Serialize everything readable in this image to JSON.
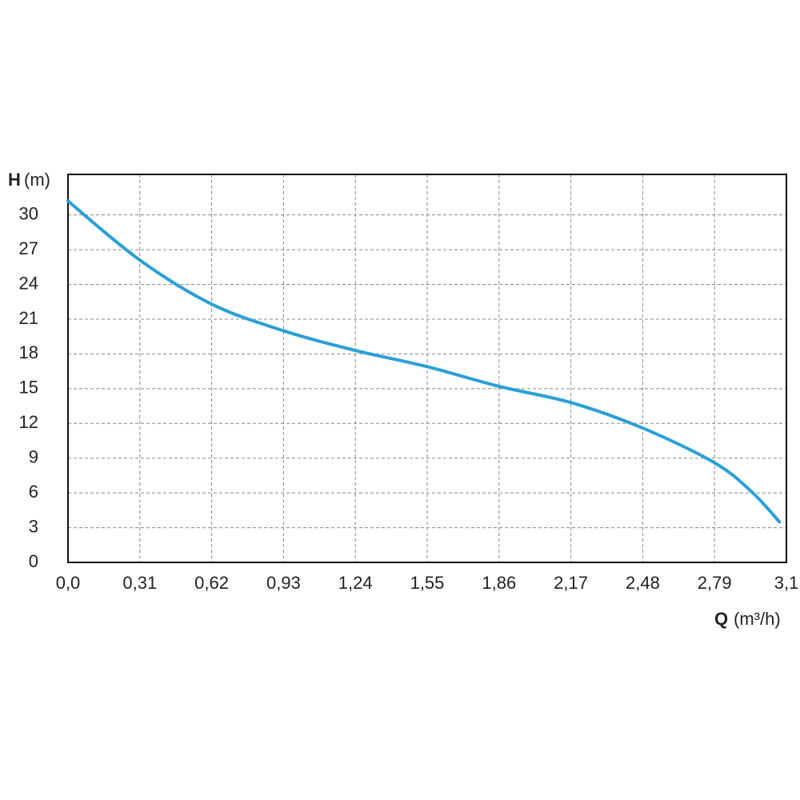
{
  "chart_data": {
    "type": "line",
    "y_label": "H",
    "y_unit": "(m)",
    "x_label": "Q",
    "x_unit": "(m³/h)",
    "xlim": [
      0,
      3.1
    ],
    "ylim": [
      0,
      33.5
    ],
    "xticks": [
      {
        "value": 0,
        "label": "0,0"
      },
      {
        "value": 0.31,
        "label": "0,31"
      },
      {
        "value": 0.62,
        "label": "0,62"
      },
      {
        "value": 0.93,
        "label": "0,93"
      },
      {
        "value": 1.24,
        "label": "1,24"
      },
      {
        "value": 1.55,
        "label": "1,55"
      },
      {
        "value": 1.86,
        "label": "1,86"
      },
      {
        "value": 2.17,
        "label": "2,17"
      },
      {
        "value": 2.48,
        "label": "2,48"
      },
      {
        "value": 2.79,
        "label": "2,79"
      },
      {
        "value": 3.1,
        "label": "3,1"
      }
    ],
    "yticks": [
      0,
      3,
      6,
      9,
      12,
      15,
      18,
      21,
      24,
      27,
      30
    ],
    "grid": true,
    "series": [
      {
        "color": "#2b9fd5",
        "x": [
          0,
          0.31,
          0.62,
          0.93,
          1.24,
          1.55,
          1.86,
          2.17,
          2.48,
          2.79,
          2.95,
          3.07
        ],
        "values": [
          31.2,
          26.1,
          22.3,
          20.0,
          18.3,
          16.9,
          15.2,
          13.8,
          11.6,
          8.6,
          6.1,
          3.5
        ]
      }
    ]
  }
}
